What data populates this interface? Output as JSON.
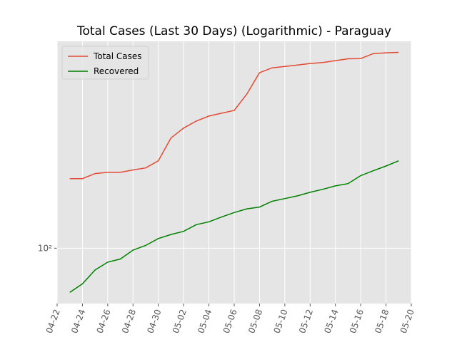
{
  "chart_data": {
    "type": "line",
    "title": "Total Cases (Last 30 Days) (Logarithmic) - Paraguay",
    "x": [
      "04-23",
      "04-24",
      "04-25",
      "04-26",
      "04-27",
      "04-28",
      "04-29",
      "04-30",
      "05-01",
      "05-02",
      "05-03",
      "05-04",
      "05-05",
      "05-06",
      "05-07",
      "05-08",
      "05-09",
      "05-10",
      "05-11",
      "05-12",
      "05-13",
      "05-14",
      "05-15",
      "05-16",
      "05-17",
      "05-18",
      "05-19"
    ],
    "series": [
      {
        "name": "Total Cases",
        "color": "#e24a33",
        "values": [
          212,
          212,
          224,
          227,
          227,
          233,
          238,
          257,
          329,
          366,
          395,
          417,
          430,
          443,
          529,
          666,
          702,
          713,
          724,
          736,
          744,
          759,
          774,
          776,
          819,
          826,
          830
        ]
      },
      {
        "name": "Recovered",
        "color": "#008000",
        "values": [
          62,
          68,
          79,
          86,
          89,
          98,
          103,
          111,
          116,
          120,
          129,
          133,
          140,
          147,
          153,
          156,
          166,
          171,
          176,
          183,
          189,
          196,
          201,
          219,
          231,
          243,
          257
        ]
      }
    ],
    "xlim": [
      "04-22",
      "05-20"
    ],
    "xticks": [
      "04-22",
      "04-24",
      "04-26",
      "04-28",
      "04-30",
      "05-02",
      "05-04",
      "05-06",
      "05-08",
      "05-10",
      "05-12",
      "05-14",
      "05-16",
      "05-18",
      "05-20"
    ],
    "ylim": [
      55,
      935
    ],
    "log_y": true,
    "yticks": [
      {
        "value": 100,
        "label": "10²"
      }
    ],
    "grid": true,
    "legend": "upper left"
  }
}
